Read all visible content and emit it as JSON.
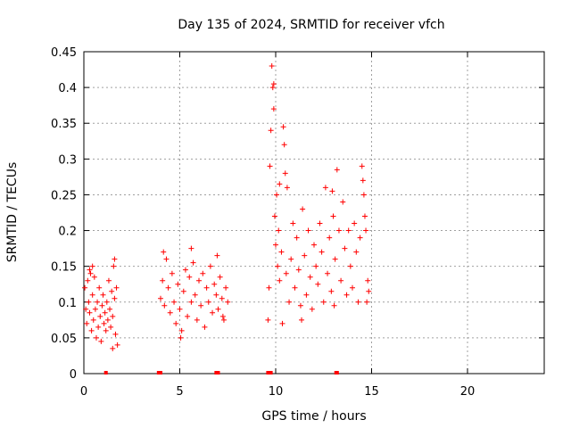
{
  "chart_data": {
    "type": "scatter",
    "title": "Day 135 of 2024, SRMTID for receiver vfch",
    "xlabel": "GPS time / hours",
    "ylabel": "SRMTID / TECUs",
    "xlim": [
      0,
      24
    ],
    "ylim": [
      0,
      0.45
    ],
    "xticks": [
      0,
      5,
      10,
      15,
      20
    ],
    "xtick_labels": [
      "0",
      "5",
      "10",
      "15",
      "20"
    ],
    "yticks": [
      0,
      0.05,
      0.1,
      0.15,
      0.2,
      0.25,
      0.3,
      0.35,
      0.4,
      0.45
    ],
    "ytick_labels": [
      "0",
      "0.05",
      "0.1",
      "0.15",
      "0.2",
      "0.25",
      "0.3",
      "0.35",
      "0.4",
      "0.45"
    ],
    "grid": true,
    "marker": "+",
    "color": "#ff0000",
    "series": [
      {
        "name": "SRMTID",
        "points": [
          [
            0.05,
            0.12
          ],
          [
            0.1,
            0.09
          ],
          [
            0.15,
            0.07
          ],
          [
            0.2,
            0.13
          ],
          [
            0.25,
            0.1
          ],
          [
            0.3,
            0.085
          ],
          [
            0.35,
            0.14
          ],
          [
            0.4,
            0.06
          ],
          [
            0.45,
            0.11
          ],
          [
            0.5,
            0.075
          ],
          [
            0.55,
            0.135
          ],
          [
            0.6,
            0.09
          ],
          [
            0.65,
            0.05
          ],
          [
            0.7,
            0.1
          ],
          [
            0.75,
            0.065
          ],
          [
            0.8,
            0.12
          ],
          [
            0.85,
            0.08
          ],
          [
            0.9,
            0.045
          ],
          [
            0.95,
            0.095
          ],
          [
            1.0,
            0.11
          ],
          [
            1.05,
            0.07
          ],
          [
            1.1,
            0.085
          ],
          [
            1.15,
            0.06
          ],
          [
            1.2,
            0.1
          ],
          [
            1.25,
            0.075
          ],
          [
            1.3,
            0.13
          ],
          [
            1.35,
            0.09
          ],
          [
            1.4,
            0.065
          ],
          [
            1.45,
            0.115
          ],
          [
            1.5,
            0.08
          ],
          [
            1.55,
            0.15
          ],
          [
            1.6,
            0.105
          ],
          [
            1.65,
            0.055
          ],
          [
            1.7,
            0.12
          ],
          [
            1.75,
            0.04
          ],
          [
            0.3,
            0.145
          ],
          [
            0.45,
            0.15
          ],
          [
            1.6,
            0.16
          ],
          [
            1.5,
            0.035
          ],
          [
            4.0,
            0.105
          ],
          [
            4.1,
            0.13
          ],
          [
            4.2,
            0.095
          ],
          [
            4.3,
            0.16
          ],
          [
            4.4,
            0.12
          ],
          [
            4.5,
            0.085
          ],
          [
            4.6,
            0.14
          ],
          [
            4.7,
            0.1
          ],
          [
            4.8,
            0.07
          ],
          [
            4.9,
            0.125
          ],
          [
            5.0,
            0.09
          ],
          [
            5.1,
            0.06
          ],
          [
            5.2,
            0.115
          ],
          [
            5.3,
            0.145
          ],
          [
            5.4,
            0.08
          ],
          [
            5.5,
            0.135
          ],
          [
            5.6,
            0.1
          ],
          [
            5.7,
            0.155
          ],
          [
            5.8,
            0.11
          ],
          [
            5.9,
            0.075
          ],
          [
            6.0,
            0.13
          ],
          [
            6.1,
            0.095
          ],
          [
            6.2,
            0.14
          ],
          [
            6.3,
            0.065
          ],
          [
            6.4,
            0.12
          ],
          [
            6.5,
            0.1
          ],
          [
            6.6,
            0.15
          ],
          [
            6.7,
            0.085
          ],
          [
            6.8,
            0.125
          ],
          [
            6.9,
            0.11
          ],
          [
            7.0,
            0.09
          ],
          [
            7.1,
            0.135
          ],
          [
            7.2,
            0.105
          ],
          [
            7.3,
            0.075
          ],
          [
            7.4,
            0.12
          ],
          [
            7.5,
            0.1
          ],
          [
            4.15,
            0.17
          ],
          [
            5.6,
            0.175
          ],
          [
            5.05,
            0.05
          ],
          [
            6.95,
            0.165
          ],
          [
            7.25,
            0.08
          ],
          [
            9.6,
            0.075
          ],
          [
            9.65,
            0.12
          ],
          [
            9.7,
            0.29
          ],
          [
            9.75,
            0.34
          ],
          [
            9.8,
            0.43
          ],
          [
            9.85,
            0.4
          ],
          [
            9.9,
            0.37
          ],
          [
            9.95,
            0.22
          ],
          [
            10.0,
            0.18
          ],
          [
            10.05,
            0.25
          ],
          [
            10.1,
            0.15
          ],
          [
            10.15,
            0.2
          ],
          [
            10.2,
            0.13
          ],
          [
            10.3,
            0.17
          ],
          [
            10.35,
            0.07
          ],
          [
            10.4,
            0.345
          ],
          [
            10.45,
            0.32
          ],
          [
            10.5,
            0.28
          ],
          [
            10.55,
            0.14
          ],
          [
            10.6,
            0.26
          ],
          [
            10.7,
            0.1
          ],
          [
            10.8,
            0.16
          ],
          [
            10.9,
            0.21
          ],
          [
            11.0,
            0.12
          ],
          [
            11.1,
            0.19
          ],
          [
            11.2,
            0.145
          ],
          [
            11.3,
            0.095
          ],
          [
            11.4,
            0.23
          ],
          [
            11.5,
            0.165
          ],
          [
            11.6,
            0.11
          ],
          [
            11.7,
            0.2
          ],
          [
            11.8,
            0.135
          ],
          [
            11.9,
            0.09
          ],
          [
            12.0,
            0.18
          ],
          [
            12.1,
            0.15
          ],
          [
            12.2,
            0.125
          ],
          [
            12.3,
            0.21
          ],
          [
            12.4,
            0.17
          ],
          [
            12.5,
            0.1
          ],
          [
            12.6,
            0.26
          ],
          [
            12.7,
            0.14
          ],
          [
            12.8,
            0.19
          ],
          [
            12.9,
            0.115
          ],
          [
            13.0,
            0.22
          ],
          [
            13.05,
            0.095
          ],
          [
            13.1,
            0.16
          ],
          [
            13.2,
            0.285
          ],
          [
            13.3,
            0.2
          ],
          [
            13.4,
            0.13
          ],
          [
            13.5,
            0.24
          ],
          [
            13.6,
            0.175
          ],
          [
            13.7,
            0.11
          ],
          [
            13.8,
            0.2
          ],
          [
            13.9,
            0.15
          ],
          [
            14.0,
            0.12
          ],
          [
            14.1,
            0.21
          ],
          [
            14.2,
            0.17
          ],
          [
            14.3,
            0.1
          ],
          [
            14.4,
            0.19
          ],
          [
            14.5,
            0.29
          ],
          [
            14.55,
            0.27
          ],
          [
            14.6,
            0.25
          ],
          [
            14.65,
            0.22
          ],
          [
            14.7,
            0.2
          ],
          [
            14.75,
            0.1
          ],
          [
            14.8,
            0.13
          ],
          [
            14.85,
            0.115
          ],
          [
            9.9,
            0.405
          ],
          [
            10.2,
            0.265
          ],
          [
            11.35,
            0.075
          ],
          [
            12.95,
            0.255
          ]
        ]
      }
    ],
    "zero_markers_x": [
      1.15,
      3.9,
      4.0,
      6.9,
      7.0,
      9.6,
      9.75,
      13.15,
      13.2
    ]
  }
}
